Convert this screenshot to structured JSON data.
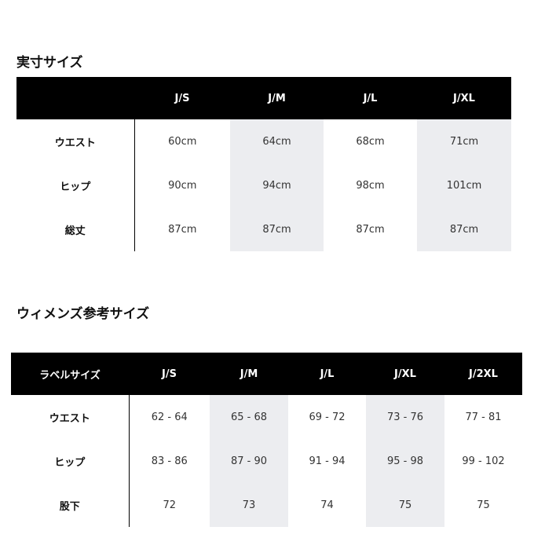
{
  "table1": {
    "title": "実寸サイズ",
    "header_label": "",
    "sizes": [
      "J/S",
      "J/M",
      "J/L",
      "J/XL"
    ],
    "rows": [
      {
        "label": "ウエスト",
        "values": [
          "60cm",
          "64cm",
          "68cm",
          "71cm"
        ]
      },
      {
        "label": "ヒップ",
        "values": [
          "90cm",
          "94cm",
          "98cm",
          "101cm"
        ]
      },
      {
        "label": "総丈",
        "values": [
          "87cm",
          "87cm",
          "87cm",
          "87cm"
        ]
      }
    ]
  },
  "table2": {
    "title": "ウィメンズ参考サイズ",
    "header_label": "ラベルサイズ",
    "sizes": [
      "J/S",
      "J/M",
      "J/L",
      "J/XL",
      "J/2XL"
    ],
    "rows": [
      {
        "label": "ウエスト",
        "values": [
          "62 - 64",
          "65 - 68",
          "69 - 72",
          "73 - 76",
          "77 - 81"
        ]
      },
      {
        "label": "ヒップ",
        "values": [
          "83 - 86",
          "87 - 90",
          "91 - 94",
          "95 - 98",
          "99 - 102"
        ]
      },
      {
        "label": "股下",
        "values": [
          "72",
          "73",
          "74",
          "75",
          "75"
        ]
      }
    ]
  },
  "colors": {
    "header_bg": "#000000",
    "stripe": "#ecedf0"
  }
}
